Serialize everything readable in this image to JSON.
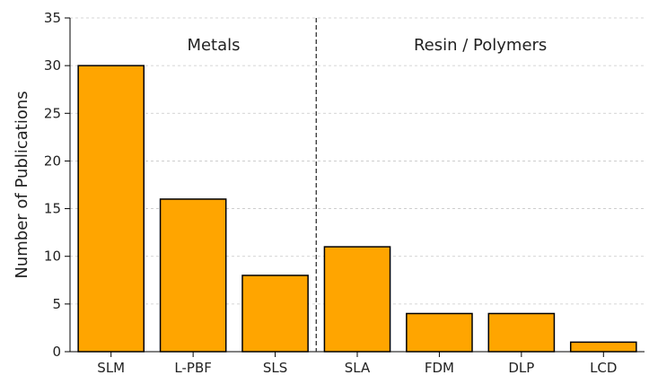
{
  "chart_data": {
    "type": "bar",
    "title": "",
    "xlabel": "",
    "ylabel": "Number of Publications",
    "categories": [
      "SLM",
      "L-PBF",
      "SLS",
      "SLA",
      "FDM",
      "DLP",
      "LCD"
    ],
    "values": [
      30,
      16,
      8,
      11,
      4,
      4,
      1
    ],
    "ylim": [
      0,
      35
    ],
    "yticks": [
      0,
      5,
      10,
      15,
      20,
      25,
      30,
      35
    ],
    "grid": "horizontal dashed",
    "bar_color": "#FFA500",
    "bar_edge_color": "#000000",
    "divider": "dashed vertical line between SLS and SLA",
    "group_labels": [
      {
        "text": "Metals",
        "group": "left"
      },
      {
        "text": "Resin / Polymers",
        "group": "right"
      }
    ]
  }
}
